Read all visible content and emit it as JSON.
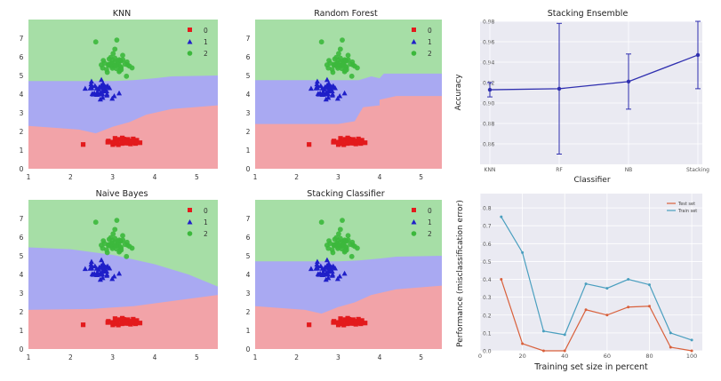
{
  "colors": {
    "class0": "#e31a1c",
    "class1": "#1f1fc8",
    "class2": "#3cb83c",
    "region0": "#f2a3a8",
    "region1": "#a9a9f2",
    "region2": "#a6dea6",
    "stack_line": "#3030b0",
    "test_line": "#d9603b",
    "train_line": "#4a9fbf",
    "plot_bg": "#eaeaf2"
  },
  "chart_data": [
    {
      "type": "scatter",
      "panel": "knn",
      "title": "KNN",
      "xlim": [
        1,
        5.5
      ],
      "ylim": [
        0,
        8
      ],
      "xticks": [
        "1",
        "2",
        "3",
        "4",
        "5"
      ],
      "yticks": [
        "0",
        "1",
        "2",
        "3",
        "4",
        "5",
        "6",
        "7"
      ],
      "legend": [
        "0",
        "1",
        "2"
      ],
      "legend_position": "top-right",
      "boundary_01": [
        [
          1,
          2.3
        ],
        [
          2.2,
          2.1
        ],
        [
          2.6,
          1.9
        ],
        [
          3,
          2.25
        ],
        [
          3.4,
          2.5
        ],
        [
          3.8,
          2.9
        ],
        [
          4.4,
          3.2
        ],
        [
          5.5,
          3.4
        ]
      ],
      "boundary_12": [
        [
          1,
          4.7
        ],
        [
          3,
          4.7
        ],
        [
          3.5,
          4.75
        ],
        [
          4,
          4.85
        ],
        [
          4.4,
          4.95
        ],
        [
          5.5,
          5.0
        ]
      ]
    },
    {
      "type": "scatter",
      "panel": "random-forest",
      "title": "Random Forest",
      "xlim": [
        1,
        5.5
      ],
      "ylim": [
        0,
        8
      ],
      "xticks": [
        "1",
        "2",
        "3",
        "4",
        "5"
      ],
      "yticks": [
        "0",
        "1",
        "2",
        "3",
        "4",
        "5",
        "6",
        "7"
      ],
      "legend": [
        "0",
        "1",
        "2"
      ],
      "legend_position": "top-right",
      "boundary_01": [
        [
          1,
          2.4
        ],
        [
          3.0,
          2.4
        ],
        [
          3.4,
          2.55
        ],
        [
          3.6,
          3.3
        ],
        [
          4.0,
          3.4
        ],
        [
          4.0,
          3.7
        ],
        [
          4.4,
          3.9
        ],
        [
          5.5,
          3.9
        ]
      ],
      "boundary_12": [
        [
          1,
          4.75
        ],
        [
          3.5,
          4.75
        ],
        [
          3.8,
          4.95
        ],
        [
          4.0,
          4.85
        ],
        [
          4.1,
          5.1
        ],
        [
          5.5,
          5.1
        ]
      ]
    },
    {
      "type": "scatter",
      "panel": "naive-bayes",
      "title": "Naive Bayes",
      "xlim": [
        1,
        5.5
      ],
      "ylim": [
        0,
        8
      ],
      "xticks": [
        "1",
        "2",
        "3",
        "4",
        "5"
      ],
      "yticks": [
        "0",
        "1",
        "2",
        "3",
        "4",
        "5",
        "6",
        "7"
      ],
      "legend": [
        "0",
        "1",
        "2"
      ],
      "legend_position": "top-right",
      "boundary_01": [
        [
          1,
          2.1
        ],
        [
          2.5,
          2.15
        ],
        [
          3.5,
          2.3
        ],
        [
          4.5,
          2.6
        ],
        [
          5.5,
          2.9
        ]
      ],
      "boundary_12": [
        [
          1,
          5.45
        ],
        [
          2,
          5.35
        ],
        [
          3,
          5.05
        ],
        [
          4,
          4.55
        ],
        [
          4.8,
          4.0
        ],
        [
          5.5,
          3.35
        ]
      ]
    },
    {
      "type": "scatter",
      "panel": "stacking-classifier",
      "title": "Stacking Classifier",
      "xlim": [
        1,
        5.5
      ],
      "ylim": [
        0,
        8
      ],
      "xticks": [
        "1",
        "2",
        "3",
        "4",
        "5"
      ],
      "yticks": [
        "0",
        "1",
        "2",
        "3",
        "4",
        "5",
        "6",
        "7"
      ],
      "legend": [
        "0",
        "1",
        "2"
      ],
      "legend_position": "top-right",
      "boundary_01": [
        [
          1,
          2.3
        ],
        [
          2.2,
          2.1
        ],
        [
          2.6,
          1.9
        ],
        [
          3,
          2.25
        ],
        [
          3.4,
          2.5
        ],
        [
          3.8,
          2.9
        ],
        [
          4.4,
          3.2
        ],
        [
          5.5,
          3.4
        ]
      ],
      "boundary_12": [
        [
          1,
          4.7
        ],
        [
          3,
          4.7
        ],
        [
          3.5,
          4.75
        ],
        [
          4,
          4.85
        ],
        [
          4.4,
          4.95
        ],
        [
          5.5,
          5.0
        ]
      ]
    },
    {
      "type": "line",
      "panel": "stacking-ensemble",
      "title": "Stacking Ensemble",
      "xlabel": "Classifier",
      "ylabel": "Accuracy",
      "categories": [
        "KNN",
        "RF",
        "NB",
        "Stacking"
      ],
      "ylim": [
        0.84,
        0.98
      ],
      "yticks": [
        "0.86",
        "0.88",
        "0.90",
        "0.92",
        "0.94",
        "0.96",
        "0.98"
      ],
      "series": [
        {
          "values": [
            0.913,
            0.914,
            0.921,
            0.947
          ],
          "errors": [
            0.007,
            0.064,
            0.027,
            0.033
          ]
        }
      ]
    },
    {
      "type": "line",
      "panel": "learning-curve",
      "xlabel": "Training set size in percent",
      "ylabel": "Performance (misclassification error)",
      "xlim": [
        0,
        105
      ],
      "ylim": [
        0,
        0.88
      ],
      "xticks": [
        "0",
        "20",
        "40",
        "60",
        "80",
        "100"
      ],
      "yticks": [
        "0.0",
        "0.1",
        "0.2",
        "0.3",
        "0.4",
        "0.5",
        "0.6",
        "0.7",
        "0.8"
      ],
      "legend_position": "top-right",
      "x": [
        10,
        20,
        30,
        40,
        50,
        60,
        70,
        80,
        90,
        100
      ],
      "series": [
        {
          "name": "Test set",
          "values": [
            0.4,
            0.04,
            0.0,
            0.0,
            0.23,
            0.2,
            0.245,
            0.25,
            0.02,
            0.0
          ]
        },
        {
          "name": "Train set",
          "values": [
            0.75,
            0.55,
            0.11,
            0.09,
            0.375,
            0.35,
            0.4,
            0.37,
            0.1,
            0.06
          ]
        }
      ]
    }
  ]
}
